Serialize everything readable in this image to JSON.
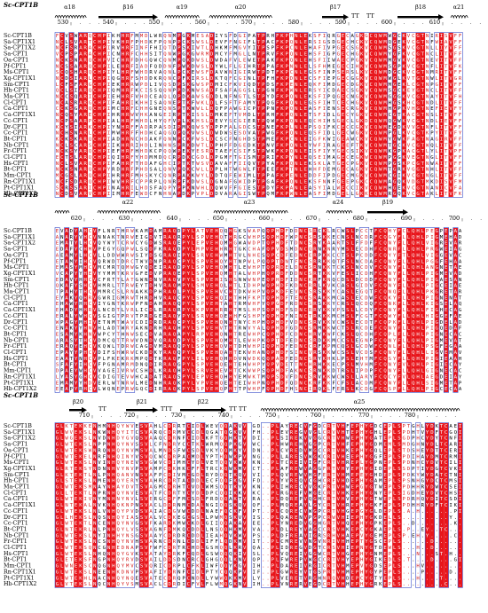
{
  "reference_label": "Sc-CPT1B",
  "sequence_names": [
    "Sc-CPT1B",
    "Sa-CPT1X1",
    "Sa-CPT1X2",
    "Sa-CPT1",
    "Oa-CPT1",
    "Pf-CPT1",
    "Ms-CPT1",
    "Xg-CPT1X1",
    "Sm-CPT1",
    "Hh-CPT1",
    "Ma-CPT1",
    "Cl-CPT1",
    "Ca-CPT1",
    "Ca-CPT1X1",
    "Cc-CPT1",
    "Dr-CPT1",
    "Cc-CPT1",
    "Bt-CPT1",
    "Nb-CPT1",
    "Fr-CPT1",
    "Cl-CPT1",
    "Hs-CPT1",
    "Bt-CPT1",
    "Mm-CPT1",
    "Rn-CPT1X1",
    "Pt-CPT1X1",
    "Hb-CPT1X2"
  ],
  "blocks": [
    {
      "structure": [
        {
          "type": "helix",
          "label": "α18"
        },
        {
          "type": "strand",
          "label": "β16"
        },
        {
          "type": "helix",
          "label": "α19"
        },
        {
          "type": "helix",
          "label": "α20"
        },
        {
          "type": "strand",
          "label": "β17"
        },
        {
          "type": "turn",
          "label": "TT"
        },
        {
          "type": "turn",
          "label": "TT"
        },
        {
          "type": "strand",
          "label": "β18"
        },
        {
          "type": "helix",
          "label": "α21"
        }
      ],
      "ruler": [
        "530",
        "540",
        "550",
        "560",
        "570",
        "580",
        "590",
        "600",
        "610"
      ]
    },
    {
      "structure": [
        {
          "type": "helix",
          "label": ""
        },
        {
          "type": "helix",
          "label": "α22"
        },
        {
          "type": "helix",
          "label": "α23"
        },
        {
          "type": "helix",
          "label": "α24"
        },
        {
          "type": "strand",
          "label": "β19"
        }
      ],
      "ruler": [
        "620",
        "630",
        "640",
        "650",
        "660",
        "670",
        "680",
        "690",
        "700"
      ]
    },
    {
      "structure": [
        {
          "type": "strand",
          "label": "β20"
        },
        {
          "type": "turn",
          "label": "TT"
        },
        {
          "type": "strand",
          "label": "β21"
        },
        {
          "type": "turn",
          "label": "TTT"
        },
        {
          "type": "strand",
          "label": "β22"
        },
        {
          "type": "turn",
          "label": "TT TT"
        },
        {
          "type": "helix",
          "label": "α25"
        }
      ],
      "ruler": [
        "710",
        "720",
        "730",
        "740",
        "750",
        "760",
        "770",
        "780"
      ]
    }
  ],
  "colors": {
    "conserved_bg": "#e8151b",
    "similar_text": "#d41e1e",
    "box": "#3b4fc9",
    "text": "#000000"
  }
}
